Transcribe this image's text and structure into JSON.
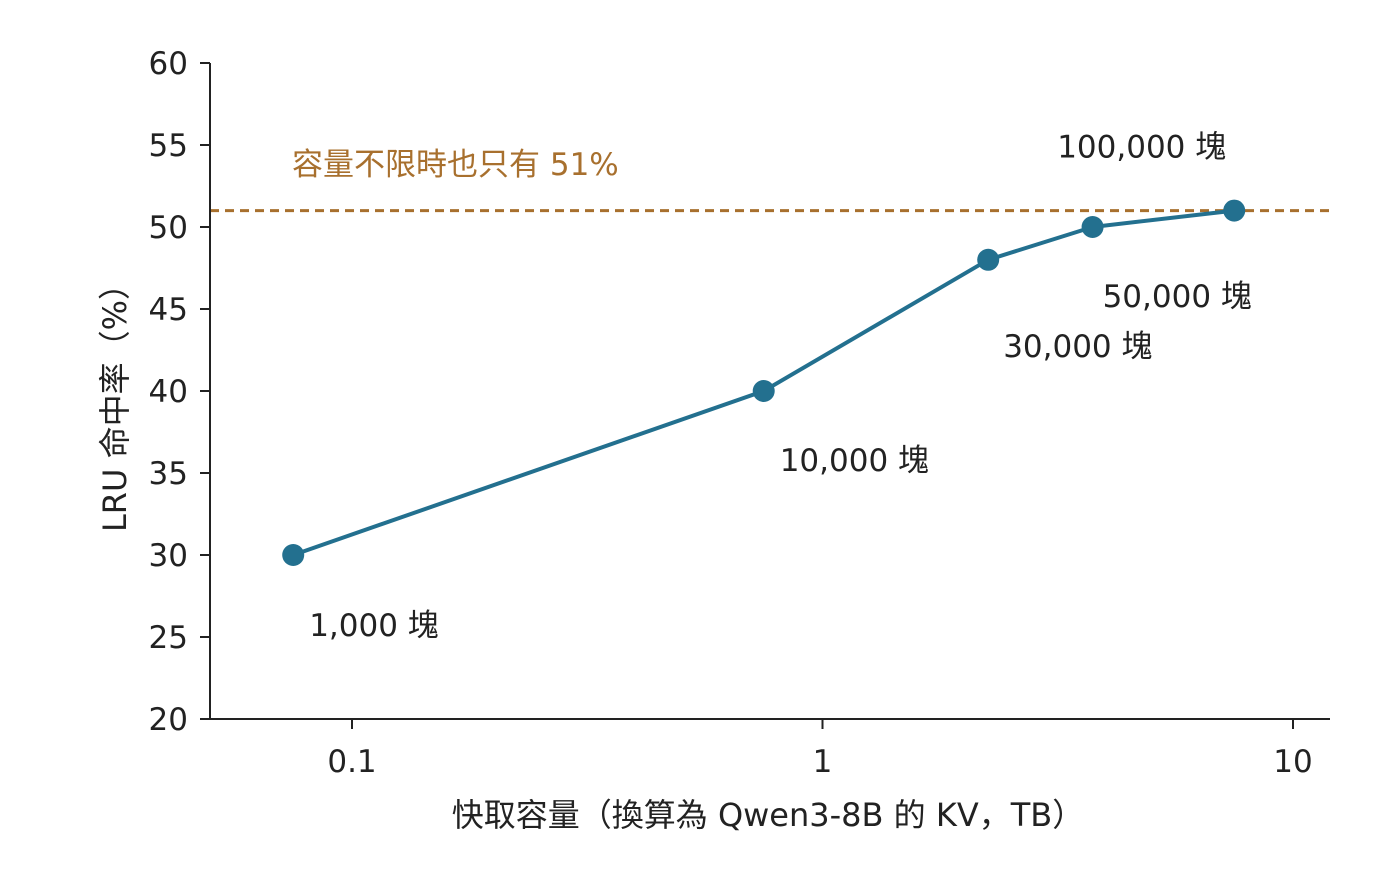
{
  "chart_data": {
    "type": "line",
    "xscale": "log",
    "xlabel": "快取容量（換算為 Qwen3-8B 的 KV，TB）",
    "ylabel": "LRU 命中率（%）",
    "xlim": [
      0.05,
      13
    ],
    "ylim": [
      20,
      60
    ],
    "xticks": [
      0.1,
      1,
      10
    ],
    "xtick_labels": [
      "0.1",
      "1",
      "10"
    ],
    "yticks": [
      20,
      25,
      30,
      35,
      40,
      45,
      50,
      55,
      60
    ],
    "ytick_labels": [
      "20",
      "25",
      "30",
      "35",
      "40",
      "45",
      "50",
      "55",
      "60"
    ],
    "series": [
      {
        "color": "#23708f",
        "points": [
          {
            "x": 0.075,
            "y": 30,
            "label": "1,000 塊"
          },
          {
            "x": 0.75,
            "y": 40,
            "label": "10,000 塊"
          },
          {
            "x": 2.25,
            "y": 48,
            "label": "30,000 塊"
          },
          {
            "x": 3.75,
            "y": 50,
            "label": "50,000 塊"
          },
          {
            "x": 7.5,
            "y": 51,
            "label": "100,000 塊"
          }
        ]
      }
    ],
    "reference_line": {
      "y": 51,
      "style": "dashed",
      "color": "#a8702e",
      "label": "容量不限時也只有 51%"
    },
    "grid": false,
    "legend": "none"
  }
}
